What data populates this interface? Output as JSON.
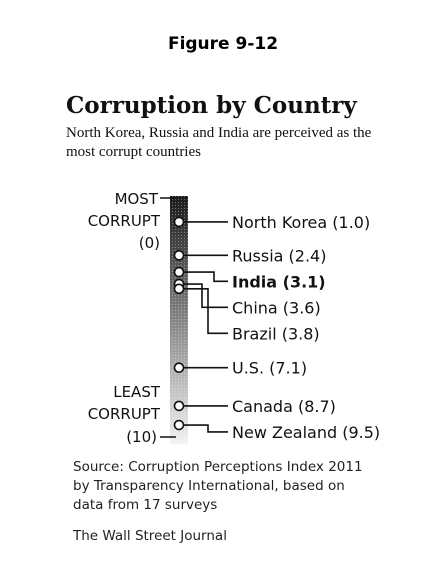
{
  "figure_label": "Figure 9-12",
  "chart_data": {
    "type": "scatter",
    "title": "Corruption by Country",
    "subtitle": "North Korea, Russia and India are perceived as the most corrupt countries",
    "scale_top_label": [
      "MOST",
      "CORRUPT",
      "(0)"
    ],
    "scale_bottom_label": [
      "LEAST",
      "CORRUPT",
      "(10)"
    ],
    "ylim": [
      0,
      10
    ],
    "points": [
      {
        "country": "North Korea",
        "value": 1.0,
        "label": "North Korea (1.0)",
        "bold": false
      },
      {
        "country": "Russia",
        "value": 2.4,
        "label": "Russia (2.4)",
        "bold": false
      },
      {
        "country": "India",
        "value": 3.1,
        "label": "India (3.1)",
        "bold": true
      },
      {
        "country": "China",
        "value": 3.6,
        "label": "China (3.6)",
        "bold": false
      },
      {
        "country": "Brazil",
        "value": 3.8,
        "label": "Brazil (3.8)",
        "bold": false
      },
      {
        "country": "U.S.",
        "value": 7.1,
        "label": "U.S. (7.1)",
        "bold": false
      },
      {
        "country": "Canada",
        "value": 8.7,
        "label": "Canada (8.7)",
        "bold": false
      },
      {
        "country": "New Zealand",
        "value": 9.5,
        "label": "New Zealand (9.5)",
        "bold": false
      }
    ]
  },
  "source": {
    "line1": "Source: Corruption Perceptions Index 2011",
    "line2": "by Transparency International, based on",
    "line3": "data from 17 surveys"
  },
  "publisher": "The Wall Street Journal"
}
